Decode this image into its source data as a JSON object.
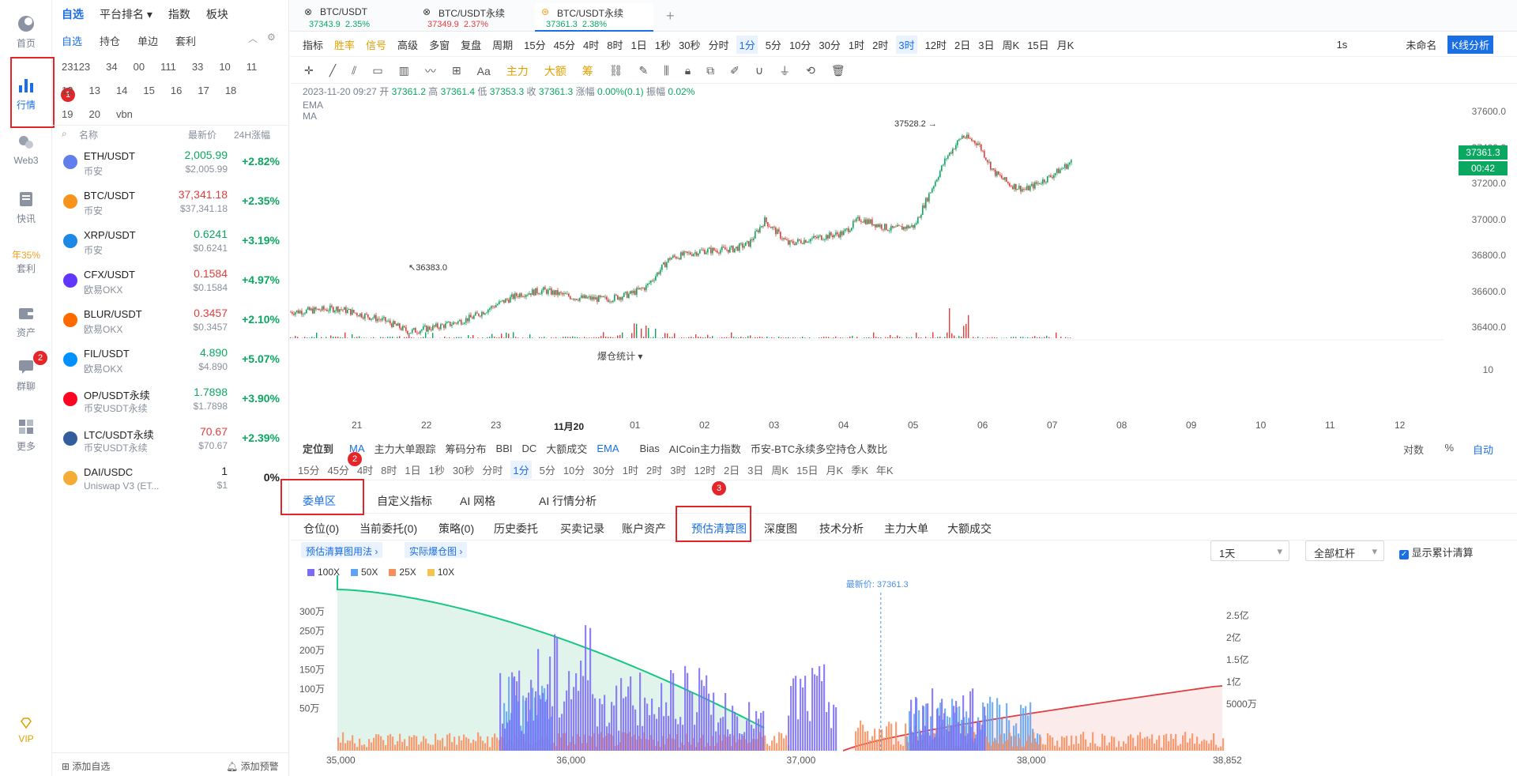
{
  "nav": {
    "items": [
      {
        "label": "首页"
      },
      {
        "label": "行情"
      },
      {
        "label": "Web3"
      },
      {
        "label": "快讯"
      },
      {
        "label": "套利",
        "tag": "年35%"
      },
      {
        "label": "资产"
      },
      {
        "label": "群聊",
        "badge": "2"
      },
      {
        "label": "更多"
      },
      {
        "label": "VIP"
      }
    ]
  },
  "watchlist": {
    "top_tabs": [
      "自选",
      "平台排名",
      "指数",
      "板块"
    ],
    "groups": [
      "自选",
      "持仓",
      "单边",
      "套利"
    ],
    "numbered": [
      "23123",
      "34",
      "00",
      "111",
      "33",
      "10",
      "11",
      "12",
      "13",
      "14",
      "15",
      "16",
      "17",
      "18",
      "19",
      "20",
      "vbn"
    ],
    "columns": {
      "name": "名称",
      "price": "最新价",
      "change": "24H涨幅"
    },
    "rows": [
      {
        "sym": "ETH/USDT",
        "ex": "币安",
        "price": "2,005.99",
        "sub": "$2,005.99",
        "chg": "+2.82%",
        "pc": "g",
        "coin": "#627eea"
      },
      {
        "sym": "BTC/USDT",
        "ex": "币安",
        "price": "37,341.18",
        "sub": "$37,341.18",
        "chg": "+2.35%",
        "pc": "r",
        "coin": "#f7931a"
      },
      {
        "sym": "XRP/USDT",
        "ex": "币安",
        "price": "0.6241",
        "sub": "$0.6241",
        "chg": "+3.19%",
        "pc": "g",
        "coin": "#1e88e5"
      },
      {
        "sym": "CFX/USDT",
        "ex": "欧易OKX",
        "price": "0.1584",
        "sub": "$0.1584",
        "chg": "+4.97%",
        "pc": "r",
        "coin": "#6236ff"
      },
      {
        "sym": "BLUR/USDT",
        "ex": "欧易OKX",
        "price": "0.3457",
        "sub": "$0.3457",
        "chg": "+2.10%",
        "pc": "r",
        "coin": "#ff6a00"
      },
      {
        "sym": "FIL/USDT",
        "ex": "欧易OKX",
        "price": "4.890",
        "sub": "$4.890",
        "chg": "+5.07%",
        "pc": "g",
        "coin": "#0090ff"
      },
      {
        "sym": "OP/USDT永续",
        "ex": "币安USDT永续",
        "price": "1.7898",
        "sub": "$1.7898",
        "chg": "+3.90%",
        "pc": "g",
        "coin": "#ff0420"
      },
      {
        "sym": "LTC/USDT永续",
        "ex": "币安USDT永续",
        "price": "70.67",
        "sub": "$70.67",
        "chg": "+2.39%",
        "pc": "r",
        "coin": "#345d9d"
      },
      {
        "sym": "DAI/USDC",
        "ex": "Uniswap V3 (ET...",
        "price": "1",
        "sub": "$1",
        "chg": "0%",
        "pc": "n",
        "coin": "#f5ac37"
      }
    ],
    "footer_add": "添加自选",
    "footer_alert": "添加预警"
  },
  "tabs": [
    {
      "name": "BTC/USDT",
      "price": "37343.9",
      "chg": "2.35%",
      "pc": "g"
    },
    {
      "name": "BTC/USDT永续",
      "price": "37349.9",
      "chg": "2.37%",
      "pc": "r"
    },
    {
      "name": "BTC/USDT永续",
      "price": "37361.3",
      "chg": "2.38%",
      "pc": "g"
    }
  ],
  "toolbar1": {
    "left": [
      "指标",
      "胜率",
      "信号",
      "高级",
      "多窗",
      "复盘",
      "周期"
    ],
    "periods": [
      "15分",
      "45分",
      "4时",
      "8时",
      "1日",
      "1秒",
      "30秒",
      "分时",
      "1分",
      "5分",
      "10分",
      "30分",
      "1时",
      "2时",
      "3时",
      "12时",
      "2日",
      "3日",
      "周K",
      "15日",
      "月K"
    ],
    "active": "1分",
    "active2": "3时",
    "right": [
      "1s",
      "未命名",
      "K线分析"
    ]
  },
  "drawbar": [
    "主力",
    "大额",
    "筹"
  ],
  "ohlc": {
    "time": "2023-11-20 09:27",
    "open": "37361.2",
    "high": "37361.4",
    "low": "37353.3",
    "close": "37361.3",
    "chg": "0.00%(0.1)",
    "amp": "0.02%",
    "lbl_open": "开",
    "lbl_high": "高",
    "lbl_low": "低",
    "lbl_close": "收",
    "lbl_chg": "涨幅",
    "lbl_amp": "振幅",
    "ema": "EMA",
    "ma": "MA"
  },
  "main_chart": {
    "yticks": [
      "37600.0",
      "37400.0",
      "37200.0",
      "37000.0",
      "36800.0",
      "36600.0",
      "36400.0"
    ],
    "xticks": [
      "21",
      "22",
      "23",
      "11月20",
      "01",
      "02",
      "03",
      "04",
      "05",
      "06",
      "07",
      "08",
      "09",
      "10",
      "11",
      "12"
    ],
    "hi": "37528.2",
    "lo": "36383.0",
    "last": "37361.3",
    "countdown": "00:42",
    "sub_label": "爆仓统计",
    "sub_tick": "10",
    "logbtn": "对数",
    "pct": "%",
    "auto": "自动"
  },
  "toolbar3": [
    "定位到",
    "MA",
    "主力大单跟踪",
    "筹码分布",
    "BBI",
    "DC",
    "大额成交",
    "EMA",
    "Bias",
    "AICoin主力指数",
    "币安-BTC永续多空持仓人数比"
  ],
  "toolbar4": [
    "15分",
    "45分",
    "4时",
    "8时",
    "1日",
    "1秒",
    "30秒",
    "分时",
    "1分",
    "5分",
    "10分",
    "30分",
    "1时",
    "2时",
    "3时",
    "12时",
    "2日",
    "3日",
    "周K",
    "15日",
    "月K",
    "季K",
    "年K"
  ],
  "panel_tabs": [
    "委单区",
    "自定义指标",
    "AI 网格",
    "AI 行情分析"
  ],
  "sub_tabs": [
    "仓位(0)",
    "当前委托(0)",
    "策略(0)",
    "历史委托",
    "买卖记录",
    "账户资产",
    "预估清算图",
    "深度图",
    "技术分析",
    "主力大单",
    "大额成交"
  ],
  "liq": {
    "chip1": "预估清算图用法",
    "chip2": "实际爆仓图",
    "period": "1天",
    "lev": "全部杠杆",
    "show_cum": "显示累计清算",
    "legend": [
      "100X",
      "50X",
      "25X",
      "10X"
    ],
    "latest": "最新价: 37361.3",
    "yl": [
      "300万",
      "250万",
      "200万",
      "150万",
      "100万",
      "50万"
    ],
    "yr": [
      "2.5亿",
      "2亿",
      "1.5亿",
      "1亿",
      "5000万"
    ],
    "xt": [
      "35,000",
      "36,000",
      "37,000",
      "38,000",
      "38,852"
    ],
    "colors": {
      "100x": "#7b6cf6",
      "50x": "#5ea2f5",
      "25x": "#fa8d5c",
      "10x": "#f7c34f"
    }
  },
  "badges": [
    "1",
    "2",
    "3"
  ]
}
